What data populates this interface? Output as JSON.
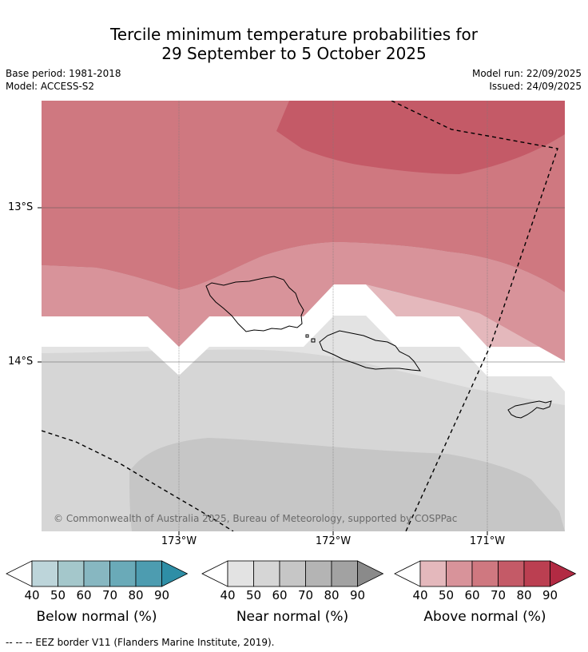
{
  "header": {
    "title_line1": "Tercile minimum temperature probabilities for",
    "title_line2": "29 September to 5 October 2025",
    "base_period": "Base period: 1981-2018",
    "model": "Model: ACCESS-S2",
    "model_run": "Model run: 22/09/2025",
    "issued": "Issued: 24/09/2025"
  },
  "map": {
    "longitude_labels": [
      "173°W",
      "172°W",
      "171°W"
    ],
    "latitude_labels": [
      "13°S",
      "14°S"
    ],
    "copyright": "© Commonwealth of Australia 2025, Bureau of Meteorology, supported by COSPPac",
    "regions": [
      "Samoa (Savai'i)",
      "Samoa (Upolu)",
      "American Samoa (Tutuila)"
    ],
    "eez_line_style": "dashed"
  },
  "legend": {
    "ticks": [
      "40",
      "50",
      "60",
      "70",
      "80",
      "90"
    ],
    "below": {
      "label": "Below normal (%)",
      "colors": [
        "#ffffff",
        "#bdd5da",
        "#a4c7cb",
        "#87b7c1",
        "#6aaab8",
        "#4d9cb0",
        "#2e8ea6"
      ]
    },
    "near": {
      "label": "Near normal (%)",
      "colors": [
        "#ffffff",
        "#e3e3e3",
        "#d6d6d6",
        "#c6c6c6",
        "#b4b4b4",
        "#a2a2a2",
        "#8a8a8a"
      ]
    },
    "above": {
      "label": "Above normal (%)",
      "colors": [
        "#ffffff",
        "#e4b8bc",
        "#d8939a",
        "#cf7880",
        "#c45a67",
        "#bb3f51",
        "#b22a43"
      ]
    }
  },
  "footer": {
    "eez_note": "-- -- -- EEZ border V11 (Flanders Marine Institute, 2019)."
  }
}
